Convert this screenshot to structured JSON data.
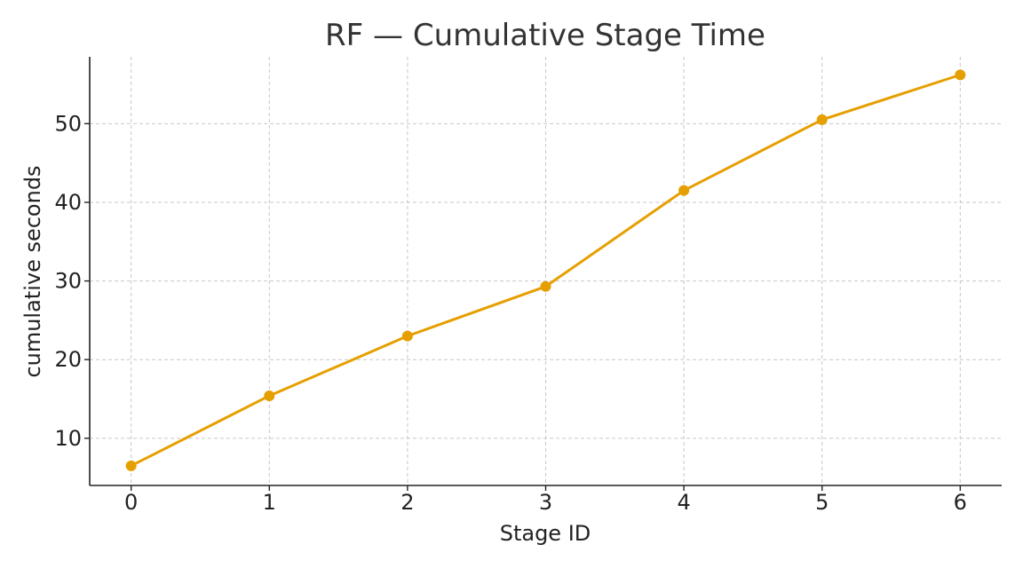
{
  "chart_data": {
    "type": "line",
    "title": "RF — Cumulative Stage Time",
    "xlabel": "Stage ID",
    "ylabel": "cumulative seconds",
    "x": [
      0,
      1,
      2,
      3,
      4,
      5,
      6
    ],
    "series": [
      {
        "values": [
          6.5,
          15.4,
          23.0,
          29.3,
          41.5,
          50.5,
          56.2
        ],
        "color": "#E69F00"
      }
    ],
    "xlim": [
      -0.3,
      6.3
    ],
    "ylim": [
      4.0,
      58.5
    ],
    "x_ticks": [
      0,
      1,
      2,
      3,
      4,
      5,
      6
    ],
    "y_ticks": [
      10,
      20,
      30,
      40,
      50
    ],
    "grid": true,
    "legend": "none",
    "axis_color": "#222222",
    "grid_color": "#c7c7c7"
  }
}
